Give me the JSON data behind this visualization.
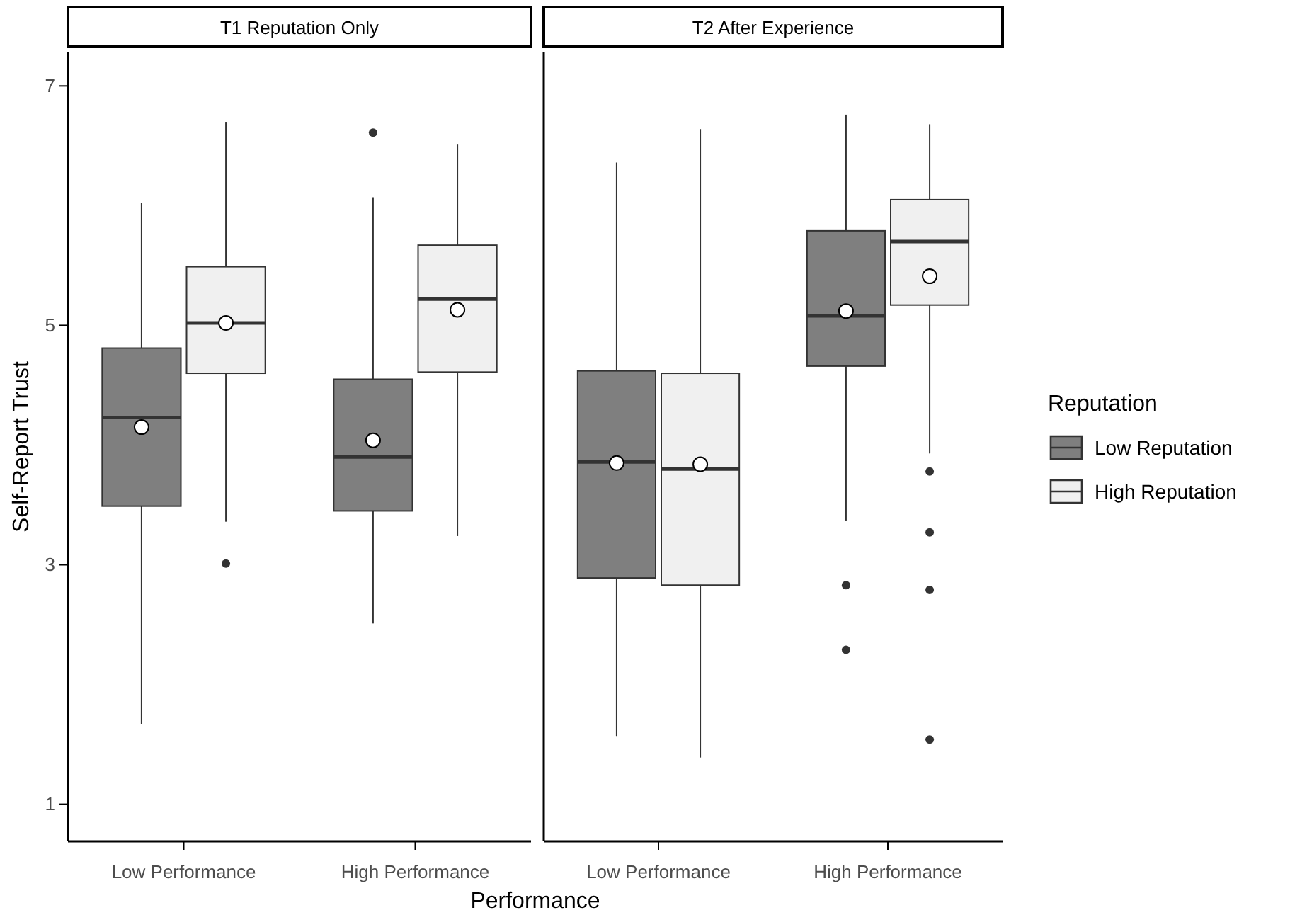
{
  "chart_data": [
    {
      "type": "box",
      "title": "T1 Reputation Only",
      "ylabel": "Self-Report Trust",
      "xlabel": "Performance",
      "categories": [
        "Low Performance",
        "High Performance"
      ],
      "ylim": [
        0.69,
        7.28
      ],
      "yticks": [
        1,
        3,
        5,
        7
      ],
      "grid": false,
      "legend": false,
      "series": [
        {
          "color": "#7f7f7f",
          "boxes": [
            {
              "low": 1.67,
              "q1": 3.49,
              "median": 4.23,
              "q3": 4.81,
              "high": 6.02,
              "mean": 4.15
            },
            {
              "low": 2.51,
              "q1": 3.45,
              "median": 3.9,
              "q3": 4.55,
              "high": 6.07,
              "mean": 4.04,
              "outliers": [
                6.61
              ]
            }
          ]
        },
        {
          "color": "#f0f0f0",
          "boxes": [
            {
              "low": 3.36,
              "q1": 4.6,
              "median": 5.02,
              "q3": 5.49,
              "high": 6.7,
              "mean": 5.02,
              "outliers": [
                3.01
              ]
            },
            {
              "low": 3.24,
              "q1": 4.61,
              "median": 5.22,
              "q3": 5.67,
              "high": 6.51,
              "mean": 5.13
            }
          ]
        }
      ]
    },
    {
      "type": "box",
      "title": "T2 After Experience",
      "categories": [
        "Low Performance",
        "High Performance"
      ],
      "ylim": [
        0.69,
        7.28
      ],
      "yticks": [
        1,
        3,
        5,
        7
      ],
      "tick_labels": "x",
      "grid": false,
      "legend": "right",
      "legend_title": "Reputation",
      "series": [
        {
          "name": "Low Reputation",
          "color": "#7f7f7f",
          "boxes": [
            {
              "low": 1.57,
              "q1": 2.89,
              "median": 3.86,
              "q3": 4.62,
              "high": 6.36,
              "mean": 3.85
            },
            {
              "low": 3.37,
              "q1": 4.66,
              "median": 5.08,
              "q3": 5.79,
              "high": 6.76,
              "mean": 5.12,
              "outliers": [
                2.83,
                2.29
              ]
            }
          ]
        },
        {
          "name": "High Reputation",
          "color": "#f0f0f0",
          "boxes": [
            {
              "low": 1.39,
              "q1": 2.83,
              "median": 3.8,
              "q3": 4.6,
              "high": 6.64,
              "mean": 3.84
            },
            {
              "low": 3.93,
              "q1": 5.17,
              "median": 5.7,
              "q3": 6.05,
              "high": 6.68,
              "mean": 5.41,
              "outliers": [
                3.78,
                3.27,
                2.79,
                1.54
              ]
            }
          ]
        }
      ]
    }
  ]
}
